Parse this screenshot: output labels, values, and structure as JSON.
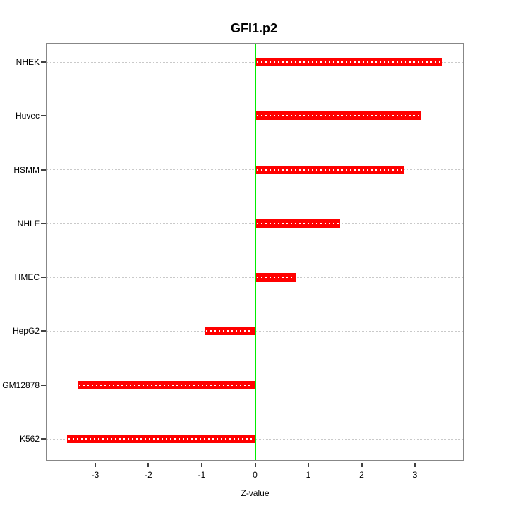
{
  "title": "GFI1.p2",
  "chart_data": {
    "type": "bar",
    "orientation": "horizontal",
    "title": "GFI1.p2",
    "xlabel": "Z-value",
    "ylabel": "",
    "categories": [
      "NHEK",
      "Huvec",
      "HSMM",
      "NHLF",
      "HMEC",
      "HepG2",
      "GM12878",
      "K562"
    ],
    "values": [
      3.5,
      3.12,
      2.8,
      1.6,
      0.77,
      -0.95,
      -3.33,
      -3.53
    ],
    "xlim": [
      -3.9,
      3.9
    ],
    "x_ticks": [
      -3,
      -2,
      -1,
      0,
      1,
      2,
      3
    ],
    "grid": true,
    "legend": "none",
    "colors": {
      "bar": "#ff0000",
      "bar_dot_pattern": "#ffffff",
      "zero_line": "#00ee00",
      "gridline": "#c9c9c9",
      "box_border": "#878787",
      "tick": "#404040",
      "text": "#000000",
      "background": "#ffffff"
    }
  }
}
